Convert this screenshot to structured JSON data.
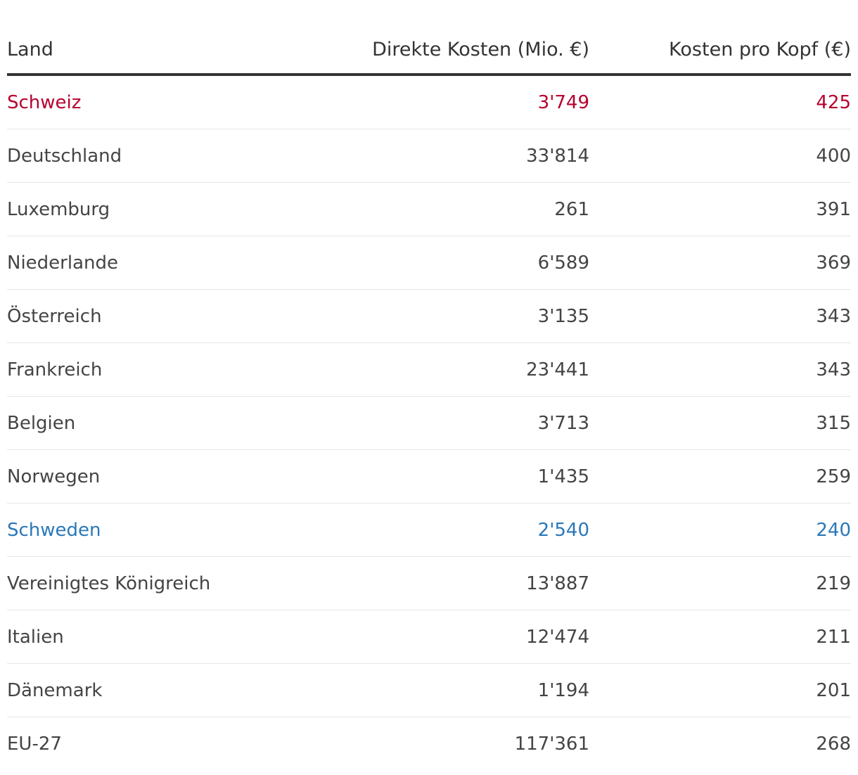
{
  "colors": {
    "text": "#444444",
    "header": "#333333",
    "highlight_red": "#b8002e",
    "highlight_blue": "#2a78b9",
    "rule": "#333333",
    "divider": "#e6e6e6"
  },
  "chart_data": {
    "type": "table",
    "columns": [
      "Land",
      "Direkte Kosten (Mio. €)",
      "Kosten pro Kopf (€)"
    ],
    "rows": [
      {
        "land": "Schweiz",
        "direkt": "3'749",
        "kopf": "425",
        "highlight": "red"
      },
      {
        "land": "Deutschland",
        "direkt": "33'814",
        "kopf": "400",
        "highlight": ""
      },
      {
        "land": "Luxemburg",
        "direkt": "261",
        "kopf": "391",
        "highlight": ""
      },
      {
        "land": "Niederlande",
        "direkt": "6'589",
        "kopf": "369",
        "highlight": ""
      },
      {
        "land": "Österreich",
        "direkt": "3'135",
        "kopf": "343",
        "highlight": ""
      },
      {
        "land": "Frankreich",
        "direkt": "23'441",
        "kopf": "343",
        "highlight": ""
      },
      {
        "land": "Belgien",
        "direkt": "3'713",
        "kopf": "315",
        "highlight": ""
      },
      {
        "land": "Norwegen",
        "direkt": "1'435",
        "kopf": "259",
        "highlight": ""
      },
      {
        "land": "Schweden",
        "direkt": "2'540",
        "kopf": "240",
        "highlight": "blue"
      },
      {
        "land": "Vereinigtes Königreich",
        "direkt": "13'887",
        "kopf": "219",
        "highlight": ""
      },
      {
        "land": "Italien",
        "direkt": "12'474",
        "kopf": "211",
        "highlight": ""
      },
      {
        "land": "Dänemark",
        "direkt": "1'194",
        "kopf": "201",
        "highlight": ""
      },
      {
        "land": "EU-27",
        "direkt": "117'361",
        "kopf": "268",
        "highlight": ""
      }
    ]
  }
}
